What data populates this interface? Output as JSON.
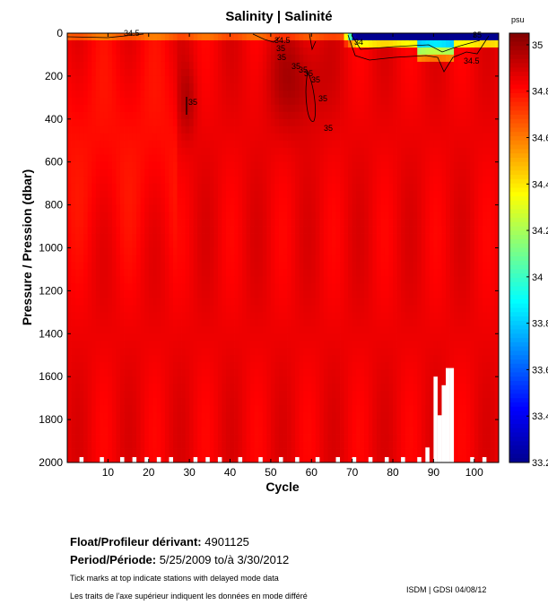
{
  "chart_data": {
    "type": "heatmap",
    "title": "Salinity | Salinité",
    "xlabel": "Cycle",
    "ylabel": "Pressure / Pression (dbar)",
    "colorbar_unit": "psu",
    "x_range": [
      0,
      106
    ],
    "y_range": [
      0,
      2000
    ],
    "y_reversed": true,
    "x_ticks": [
      10,
      20,
      30,
      40,
      50,
      60,
      70,
      80,
      90,
      100
    ],
    "y_ticks": [
      0,
      200,
      400,
      600,
      800,
      1000,
      1200,
      1400,
      1600,
      1800,
      2000
    ],
    "color_range": [
      33.2,
      35.05
    ],
    "colorbar_ticks": [
      "35",
      "34.8",
      "34.6",
      "34.4",
      "34.2",
      "34",
      "33.8",
      "33.6",
      "33.4",
      "33.2"
    ],
    "colorbar_tick_values": [
      35.0,
      34.8,
      34.6,
      34.4,
      34.2,
      34.0,
      33.8,
      33.6,
      33.4,
      33.2
    ],
    "colormap": [
      "#00008f",
      "#0000ff",
      "#0080ff",
      "#00ffff",
      "#80ff80",
      "#ffff00",
      "#ff8000",
      "#ff0000",
      "#800000"
    ],
    "data_summary": {
      "deep_value_psu": 34.85,
      "surface_fresh_zone_cycles": [
        70,
        104
      ],
      "surface_fresh_min_psu": 33.3,
      "high_salinity_core_cycles": [
        48,
        66
      ],
      "high_salinity_core_psu": 35.05
    },
    "contour_labels": [
      "34.5",
      "34.5",
      "35",
      "35",
      "35",
      "35",
      "35",
      "35",
      "35",
      "35",
      "34",
      "35",
      "34.5",
      "35"
    ],
    "missing_data_note": "cycles 89-95 missing below about 1560 dbar"
  },
  "info": {
    "float_label": "Float/Profileur dérivant:",
    "float_value": "4901125",
    "period_label": "Period/Période:",
    "period_value": "5/25/2009  to/à  3/30/2012",
    "note_en": "Tick marks at top indicate stations with delayed mode data",
    "note_fr": "Les traits de l'axe supérieur indiquent les données en mode différé"
  },
  "footer": "ISDM | GDSI  04/08/12"
}
